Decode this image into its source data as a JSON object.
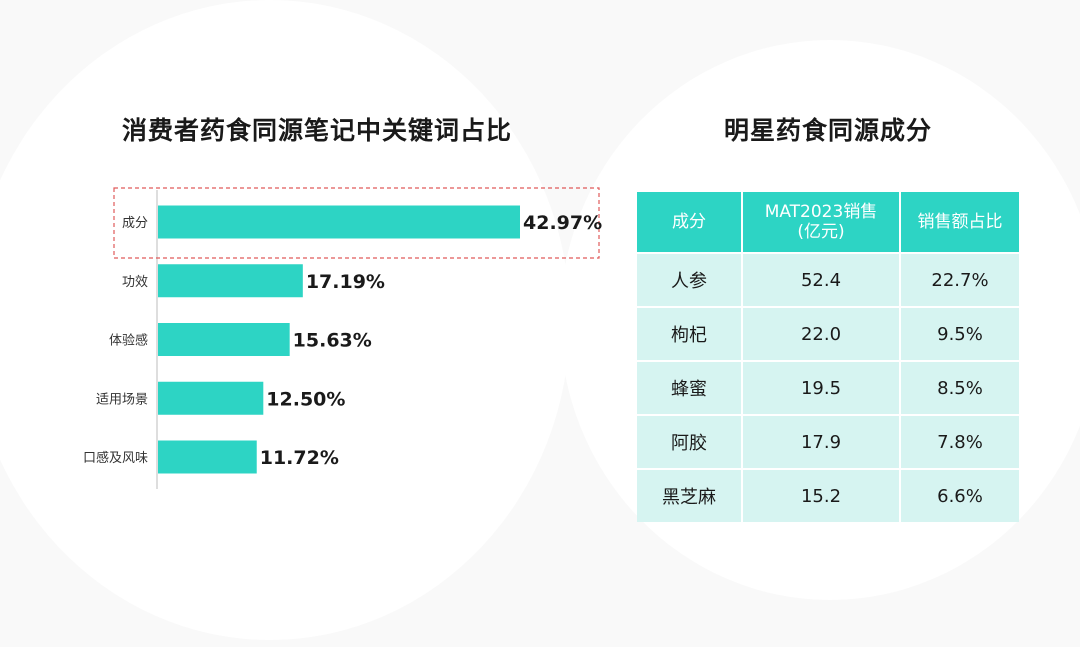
{
  "left_panel": {
    "title": "消费者药食同源笔记中关键词占比"
  },
  "right_panel": {
    "title": "明星药食同源成分"
  },
  "chart_data": {
    "type": "bar",
    "orientation": "horizontal",
    "title": "消费者药食同源笔记中关键词占比",
    "categories": [
      "成分",
      "功效",
      "体验感",
      "适用场景",
      "口感及风味"
    ],
    "values": [
      42.97,
      17.19,
      15.63,
      12.5,
      11.72
    ],
    "value_labels": [
      "42.97%",
      "17.19%",
      "15.63%",
      "12.50%",
      "11.72%"
    ],
    "unit": "%",
    "xlim": [
      0,
      50
    ],
    "highlighted_category": "成分",
    "bar_color": "#2dd4c4",
    "highlight_color": "#e05a5a",
    "grid": false,
    "legend": "none"
  },
  "table": {
    "headers": [
      "成分",
      "MAT2023销售\n(亿元)",
      "销售额占比"
    ],
    "rows": [
      [
        "人参",
        "52.4",
        "22.7%"
      ],
      [
        "枸杞",
        "22.0",
        "9.5%"
      ],
      [
        "蜂蜜",
        "19.5",
        "8.5%"
      ],
      [
        "阿胶",
        "17.9",
        "7.8%"
      ],
      [
        "黑芝麻",
        "15.2",
        "6.6%"
      ]
    ],
    "header_color": "#2dd4c4",
    "cell_color": "#d6f4f1"
  }
}
